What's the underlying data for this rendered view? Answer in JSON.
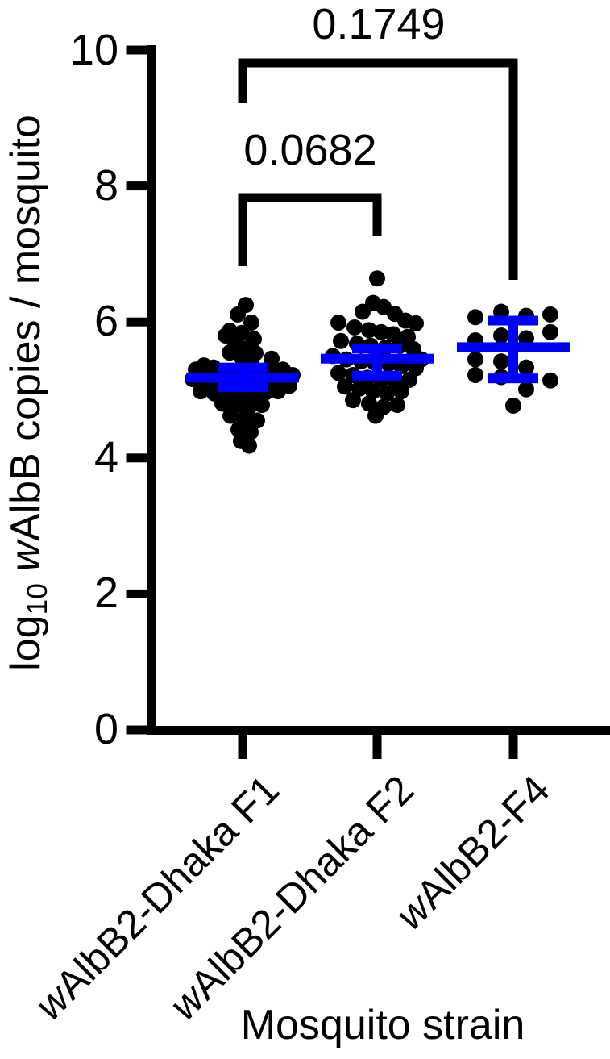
{
  "chart_data": {
    "type": "scatter",
    "title": "",
    "xlabel": "Mosquito strain",
    "ylabel": {
      "pre": "log",
      "sub": "10",
      "mid": " ",
      "italic": "w",
      "post": "AlbB copies / mosquito"
    },
    "ylabel_plain": "log10 wAlbB copies / mosquito",
    "ylim": [
      0,
      10
    ],
    "yticks": [
      "0",
      "2",
      "4",
      "6",
      "8",
      "10"
    ],
    "grid": "off",
    "legend": "none",
    "colors": {
      "point": "#000000",
      "errorbar": "#0000ff",
      "axis": "#000000"
    },
    "error_bar_style": "mean with error bars",
    "groups": [
      {
        "label": {
          "italic": "w",
          "rest": "AlbB2-Dhaka F1"
        },
        "mean": 5.18,
        "err_low": 5.04,
        "err_high": 5.33,
        "n": 51,
        "points": [
          [
            4,
            6.25
          ],
          [
            -6,
            6.11
          ],
          [
            11,
            5.99
          ],
          [
            -16,
            5.87
          ],
          [
            -21,
            5.8
          ],
          [
            -1,
            5.84
          ],
          [
            14,
            5.75
          ],
          [
            -9,
            5.67
          ],
          [
            4,
            5.61
          ],
          [
            -16,
            5.55
          ],
          [
            16,
            5.54
          ],
          [
            -1,
            5.48
          ],
          [
            11,
            5.42
          ],
          [
            36,
            5.46
          ],
          [
            -48,
            5.36
          ],
          [
            -36,
            5.33
          ],
          [
            -58,
            5.3
          ],
          [
            -24,
            5.28
          ],
          [
            -10,
            5.26
          ],
          [
            5,
            5.24
          ],
          [
            20,
            5.26
          ],
          [
            35,
            5.28
          ],
          [
            50,
            5.3
          ],
          [
            62,
            5.22
          ],
          [
            -62,
            5.16
          ],
          [
            -45,
            5.12
          ],
          [
            -30,
            5.1
          ],
          [
            -15,
            5.08
          ],
          [
            0,
            5.12
          ],
          [
            15,
            5.1
          ],
          [
            30,
            5.14
          ],
          [
            45,
            5.12
          ],
          [
            58,
            5.06
          ],
          [
            -52,
            4.98
          ],
          [
            -35,
            4.95
          ],
          [
            -18,
            4.92
          ],
          [
            -3,
            4.9
          ],
          [
            12,
            4.94
          ],
          [
            28,
            4.96
          ],
          [
            44,
            4.98
          ],
          [
            -25,
            4.8
          ],
          [
            -8,
            4.78
          ],
          [
            8,
            4.75
          ],
          [
            24,
            4.78
          ],
          [
            -15,
            4.62
          ],
          [
            2,
            4.58
          ],
          [
            18,
            4.55
          ],
          [
            -5,
            4.42
          ],
          [
            10,
            4.38
          ],
          [
            -2,
            4.25
          ],
          [
            8,
            4.18
          ]
        ]
      },
      {
        "label": {
          "italic": "w",
          "rest": "AlbB2-Dhaka F2"
        },
        "mean": 5.46,
        "err_low": 5.21,
        "err_high": 5.61,
        "n": 43,
        "points": [
          [
            0,
            6.64
          ],
          [
            -5,
            6.28
          ],
          [
            8,
            6.22
          ],
          [
            -18,
            6.15
          ],
          [
            22,
            6.12
          ],
          [
            -48,
            5.99
          ],
          [
            35,
            6.02
          ],
          [
            48,
            5.98
          ],
          [
            -28,
            5.92
          ],
          [
            -10,
            5.88
          ],
          [
            5,
            5.85
          ],
          [
            20,
            5.82
          ],
          [
            38,
            5.78
          ],
          [
            -45,
            5.72
          ],
          [
            -25,
            5.68
          ],
          [
            -8,
            5.65
          ],
          [
            10,
            5.62
          ],
          [
            28,
            5.65
          ],
          [
            45,
            5.6
          ],
          [
            55,
            5.45
          ],
          [
            -55,
            5.5
          ],
          [
            -38,
            5.45
          ],
          [
            -20,
            5.42
          ],
          [
            -3,
            5.4
          ],
          [
            14,
            5.38
          ],
          [
            30,
            5.35
          ],
          [
            48,
            5.32
          ],
          [
            -48,
            5.25
          ],
          [
            -30,
            5.22
          ],
          [
            -12,
            5.18
          ],
          [
            5,
            5.15
          ],
          [
            22,
            5.12
          ],
          [
            40,
            5.15
          ],
          [
            -40,
            5.05
          ],
          [
            -22,
            5.02
          ],
          [
            -5,
            4.98
          ],
          [
            12,
            4.95
          ],
          [
            30,
            4.98
          ],
          [
            -30,
            4.85
          ],
          [
            -10,
            4.8
          ],
          [
            8,
            4.75
          ],
          [
            25,
            4.78
          ],
          [
            -2,
            4.62
          ]
        ]
      },
      {
        "label": {
          "italic": "w",
          "rest": "AlbB2-F4"
        },
        "mean": 5.63,
        "err_low": 5.17,
        "err_high": 6.02,
        "n": 16,
        "points": [
          [
            -47,
            6.07
          ],
          [
            -15,
            6.15
          ],
          [
            16,
            6.09
          ],
          [
            46,
            6.11
          ],
          [
            -47,
            5.73
          ],
          [
            -15,
            5.8
          ],
          [
            16,
            5.76
          ],
          [
            46,
            5.85
          ],
          [
            -47,
            5.45
          ],
          [
            -15,
            5.42
          ],
          [
            16,
            5.33
          ],
          [
            -47,
            5.22
          ],
          [
            -15,
            5.19
          ],
          [
            46,
            5.14
          ],
          [
            16,
            5.01
          ],
          [
            0,
            4.77
          ]
        ]
      }
    ],
    "comparisons": [
      {
        "label": "0.0682",
        "from": 0,
        "to": 1
      },
      {
        "label": "0.1749",
        "from": 0,
        "to": 2
      }
    ]
  }
}
